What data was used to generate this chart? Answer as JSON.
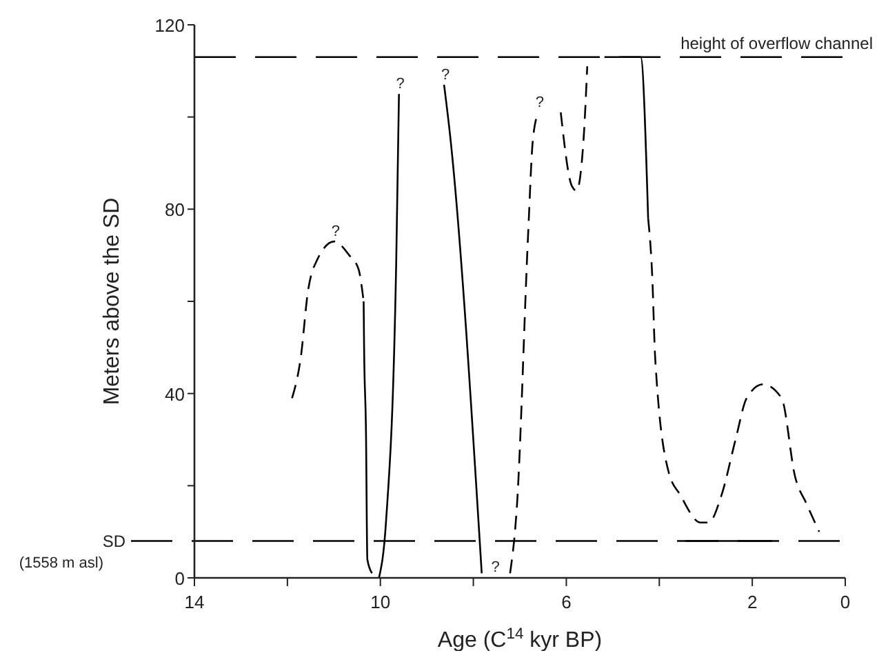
{
  "chart_data": {
    "type": "line",
    "xlabel": "Age (C$^{14}$ kyr BP)",
    "ylabel": "Meters above the SD",
    "xlim": [
      14,
      0
    ],
    "xticks": [
      14,
      {
        "value": 12,
        "label": null
      },
      10,
      {
        "value": 8,
        "label": null
      },
      6,
      {
        "value": 4,
        "label": null
      },
      2,
      0
    ],
    "ylim": [
      0,
      120
    ],
    "yticks": [
      0,
      {
        "value": 20,
        "label": null
      },
      40,
      {
        "value": 60,
        "label": null
      },
      80,
      {
        "value": 100,
        "label": null
      },
      120
    ],
    "grid": false,
    "marker": "none",
    "series": [
      {
        "color": "#000000",
        "line_style": "dashed",
        "x": [
          11.9,
          11.71,
          11.56,
          11.36,
          10.99,
          10.67,
          10.47,
          10.36
        ],
        "values": [
          39,
          48,
          62,
          69,
          73,
          70,
          67,
          60
        ]
      },
      {
        "color": "#000000",
        "line_style": "solid",
        "x": [
          10.36,
          10.35,
          10.31,
          10.28,
          10.18
        ],
        "values": [
          60,
          50,
          32,
          4,
          1
        ]
      },
      {
        "color": "#000000",
        "line_style": "solid",
        "x": [
          10.03,
          9.88,
          9.66,
          9.6
        ],
        "values": [
          0,
          12,
          68,
          105
        ]
      },
      {
        "color": "#000000",
        "line_style": "solid",
        "x": [
          8.63,
          8.5,
          7.82
        ],
        "values": [
          107,
          96,
          1
        ]
      },
      {
        "color": "#000000",
        "line_style": "dashed",
        "x": [
          7.21,
          7.06,
          6.82,
          6.72,
          6.6,
          6.4,
          6.12,
          5.88,
          5.78,
          5.63,
          5.55
        ],
        "values": [
          1,
          16,
          75,
          95,
          101,
          null,
          101,
          85,
          84,
          95,
          111
        ]
      },
      {
        "color": "#000000",
        "line_style": "solid",
        "x": [
          5.18,
          4.4,
          4.24
        ],
        "values": [
          113,
          113,
          78
        ]
      },
      {
        "color": "#000000",
        "line_style": "dashed",
        "x": [
          4.24,
          4.15,
          4.09,
          3.8,
          3.55,
          3.11,
          2.94,
          2.66,
          2.36,
          2.12,
          1.77,
          1.37,
          1.08,
          0.83,
          0.56
        ],
        "values": [
          78,
          65,
          48,
          23,
          18,
          12,
          12,
          18,
          30,
          39,
          42,
          39,
          22,
          16,
          10
        ]
      },
      {
        "color": "#000000",
        "line_style": "solid",
        "x": [
          3.44,
          1.57
        ],
        "values": [
          8,
          8
        ]
      }
    ],
    "ref_lines": [
      {
        "axis": "y",
        "value": 8,
        "label": "SD (1558 m asl)",
        "line_style": "dashed",
        "color": "#000000"
      },
      {
        "axis": "y",
        "value": 113,
        "label": "height of overflow channel",
        "line_style": "dashed",
        "color": "#000000"
      }
    ],
    "annotations": [
      {
        "text": "?",
        "x": 10.99,
        "y": 73
      },
      {
        "text": "?",
        "x": 9.6,
        "y": 105
      },
      {
        "text": "?",
        "x": 8.63,
        "y": 107
      },
      {
        "text": "?",
        "x": 7.82,
        "y": 1
      },
      {
        "text": "?",
        "x": 6.6,
        "y": 101
      }
    ]
  }
}
